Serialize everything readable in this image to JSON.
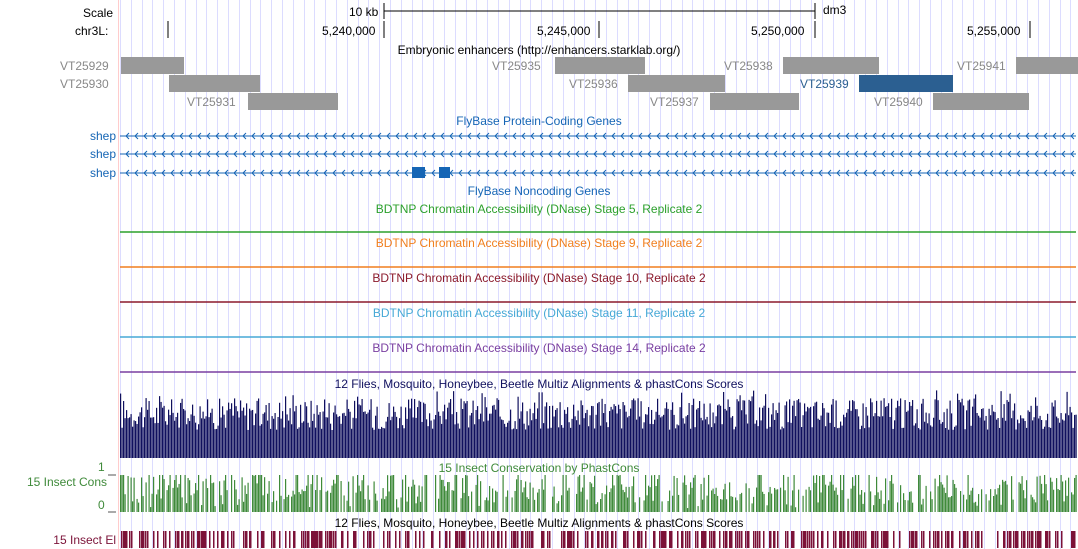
{
  "ruler": {
    "scale_label": "Scale",
    "chrom_label": "chr3L:",
    "scale_value": "10 kb",
    "assembly": "dm3",
    "ticks": [
      "5,240,000",
      "5,245,000",
      "5,250,000",
      "5,255,000"
    ]
  },
  "enhancers": {
    "title": "Embryonic enhancers (http://enhancers.starklab.org/)",
    "items": [
      {
        "id": "VT25929",
        "selected": false
      },
      {
        "id": "VT25930",
        "selected": false
      },
      {
        "id": "VT25931",
        "selected": false
      },
      {
        "id": "VT25935",
        "selected": false
      },
      {
        "id": "VT25936",
        "selected": false
      },
      {
        "id": "VT25937",
        "selected": false
      },
      {
        "id": "VT25938",
        "selected": false
      },
      {
        "id": "VT25939",
        "selected": true
      },
      {
        "id": "VT25940",
        "selected": false
      },
      {
        "id": "VT25941",
        "selected": false
      }
    ]
  },
  "genes": {
    "title": "FlyBase Protein-Coding Genes",
    "items": [
      {
        "name": "shep"
      },
      {
        "name": "shep"
      },
      {
        "name": "shep"
      }
    ]
  },
  "noncoding": {
    "title": "FlyBase Noncoding Genes"
  },
  "dnase": [
    {
      "title": "BDTNP Chromatin Accessibility (DNase) Stage 5, Replicate 2",
      "color": "#2ca02c"
    },
    {
      "title": "BDTNP Chromatin Accessibility (DNase) Stage 9, Replicate 2",
      "color": "#f07f1e"
    },
    {
      "title": "BDTNP Chromatin Accessibility (DNase) Stage 10, Replicate 2",
      "color": "#8b1a2b"
    },
    {
      "title": "BDTNP Chromatin Accessibility (DNase) Stage 11, Replicate 2",
      "color": "#46a9d6"
    },
    {
      "title": "BDTNP Chromatin Accessibility (DNase) Stage 14, Replicate 2",
      "color": "#7a3fa0"
    }
  ],
  "multiz": {
    "title": "12 Flies, Mosquito, Honeybee, Beetle Multiz Alignments & phastCons Scores",
    "color": "#10105e"
  },
  "cons": {
    "title": "15 Insect Conservation by PhastCons",
    "label": "15 Insect Cons",
    "y_max": "1",
    "y_min": "0",
    "color": "#3f8a3a"
  },
  "elements": {
    "title": "12 Flies, Mosquito, Honeybee, Beetle Multiz Alignments & phastCons Scores",
    "label": "15 Insect El",
    "color": "#7b1238"
  },
  "colors": {
    "enhancer_gray": "#999999",
    "enhancer_selected": "#2b5f91",
    "gene_blue": "#1565b5",
    "grid": "#dcdcff"
  }
}
